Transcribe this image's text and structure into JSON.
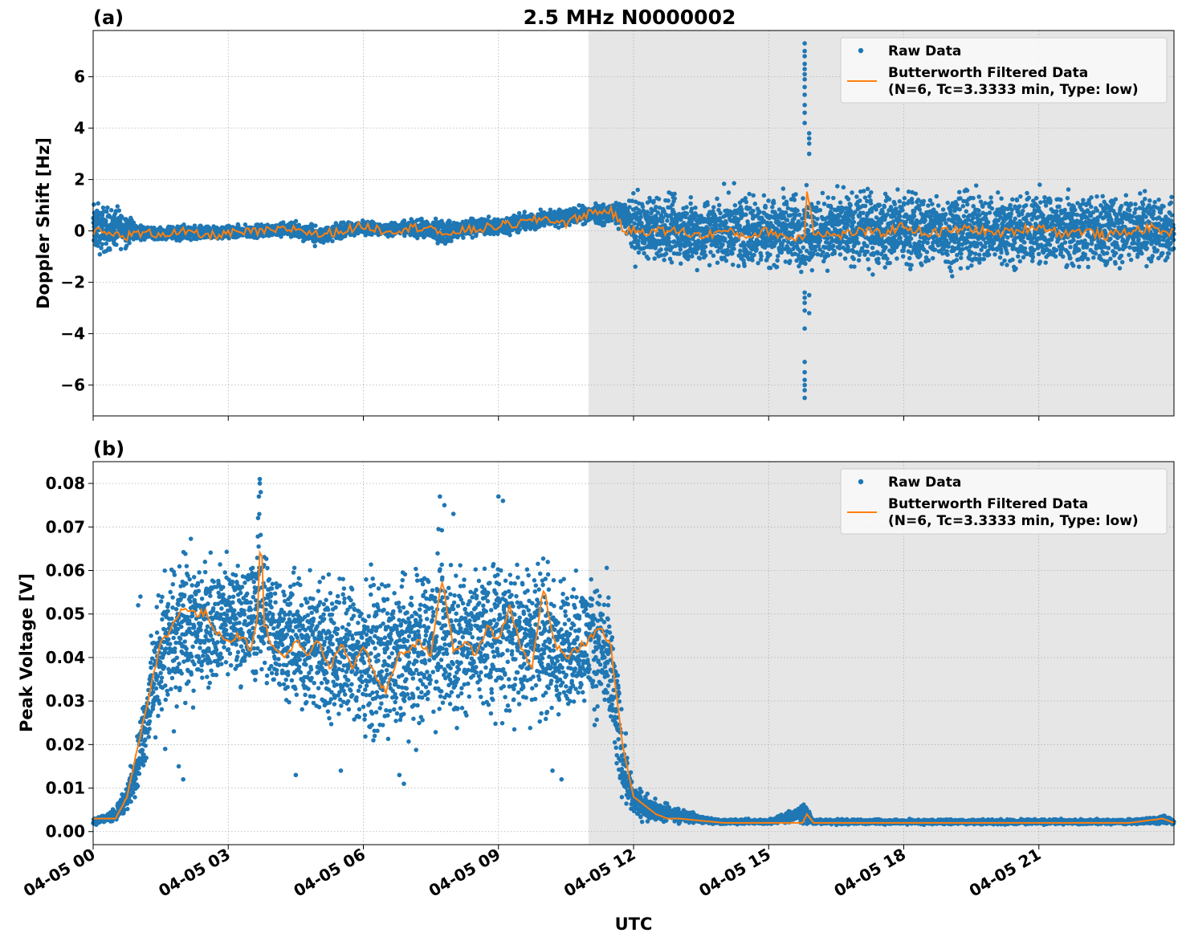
{
  "figure": {
    "title": "2.5 MHz N0000002",
    "xlabel": "UTC",
    "x_tick_labels": [
      "04-05 00",
      "04-05 03",
      "04-05 06",
      "04-05 09",
      "04-05 12",
      "04-05 15",
      "04-05 18",
      "04-05 21"
    ],
    "shaded_region_start_hour": 11.0,
    "colors": {
      "raw": "#1f77b4",
      "filtered": "#ff7f0e",
      "shade": "#e6e6e6",
      "grid": "#b0b0b0"
    }
  },
  "chart_data": [
    {
      "panel": "(a)",
      "type": "scatter",
      "ylabel": "Doppler Shift [Hz]",
      "xlim_hours": [
        0,
        24
      ],
      "ylim": [
        -7.2,
        7.8
      ],
      "y_ticks": [
        -6,
        -4,
        -2,
        0,
        2,
        4,
        6
      ],
      "y_tick_labels": [
        "−6",
        "−4",
        "−2",
        "0",
        "2",
        "4",
        "6"
      ],
      "legend": {
        "placement": "top-right",
        "entries": [
          "Raw Data",
          "Butterworth Filtered Data",
          "(N=6, Tc=3.3333 min, Type: low)"
        ]
      },
      "series": [
        {
          "name": "Raw Data",
          "kind": "scatter-envelope",
          "x_hours": [
            0,
            0.25,
            0.5,
            0.75,
            1.0,
            1.5,
            2.0,
            2.5,
            3.0,
            3.5,
            4.0,
            4.5,
            5.0,
            5.5,
            6.0,
            6.5,
            7.0,
            7.5,
            7.8,
            8.0,
            8.5,
            9.0,
            9.5,
            10.0,
            10.5,
            11.0,
            11.5,
            11.8,
            12.0,
            12.5,
            13.0,
            14.0,
            15.0,
            15.8,
            16.0,
            17.0,
            18.0,
            19.0,
            20.0,
            21.0,
            22.0,
            23.0,
            24.0
          ],
          "upper": [
            1.5,
            1.3,
            1.2,
            1.0,
            0.3,
            0.2,
            0.3,
            0.3,
            0.3,
            0.3,
            0.4,
            0.5,
            0.3,
            0.4,
            0.5,
            0.4,
            0.5,
            0.6,
            0.6,
            0.5,
            0.7,
            0.6,
            0.8,
            0.9,
            1.0,
            1.1,
            1.2,
            1.3,
            1.8,
            1.8,
            1.8,
            1.9,
            2.0,
            2.0,
            1.9,
            2.0,
            2.0,
            2.0,
            2.0,
            2.0,
            1.9,
            1.9,
            1.8
          ],
          "lower": [
            -1.3,
            -1.2,
            -1.0,
            -0.8,
            -0.4,
            -0.4,
            -0.5,
            -0.5,
            -0.4,
            -0.4,
            -0.3,
            -0.4,
            -0.7,
            -0.4,
            -0.2,
            -0.3,
            -0.3,
            -0.5,
            -0.7,
            -0.5,
            -0.3,
            -0.3,
            -0.2,
            0.0,
            0.1,
            0.2,
            0.1,
            0.0,
            -1.5,
            -1.7,
            -1.8,
            -1.9,
            -1.9,
            -2.0,
            -1.9,
            -1.9,
            -1.9,
            -1.9,
            -1.9,
            -1.9,
            -1.8,
            -1.8,
            -1.7
          ]
        },
        {
          "name": "Butterworth Filtered Data",
          "kind": "line",
          "x_hours": [
            0,
            0.25,
            0.5,
            0.75,
            1.0,
            1.5,
            2.0,
            2.5,
            3.0,
            3.5,
            4.0,
            4.5,
            5.0,
            5.5,
            6.0,
            6.5,
            7.0,
            7.5,
            7.8,
            8.0,
            8.5,
            9.0,
            9.5,
            10.0,
            10.5,
            11.0,
            11.5,
            11.8,
            12.0,
            12.5,
            13.0,
            13.5,
            14.0,
            14.5,
            15.0,
            15.5,
            15.8,
            15.85,
            16.0,
            16.5,
            17.0,
            17.5,
            18.0,
            18.5,
            19.0,
            19.5,
            20.0,
            20.5,
            21.0,
            21.5,
            22.0,
            22.5,
            23.0,
            23.5,
            24.0
          ],
          "values": [
            0.0,
            -0.1,
            -0.15,
            -0.2,
            -0.1,
            -0.1,
            -0.05,
            -0.2,
            -0.1,
            -0.05,
            0.0,
            0.1,
            -0.15,
            0.0,
            0.2,
            0.0,
            0.1,
            0.2,
            -0.3,
            0.0,
            0.05,
            0.2,
            0.3,
            0.5,
            0.3,
            0.7,
            0.8,
            0.0,
            0.0,
            0.0,
            0.0,
            -0.2,
            0.0,
            -0.2,
            0.0,
            -0.3,
            -0.2,
            1.7,
            0.0,
            -0.2,
            0.0,
            -0.1,
            0.2,
            -0.1,
            0.0,
            0.1,
            -0.1,
            0.0,
            0.2,
            -0.1,
            0.0,
            -0.2,
            0.0,
            0.1,
            -0.1
          ]
        },
        {
          "name": "Raw Data outliers",
          "kind": "points",
          "x_hours": [
            15.8,
            15.8,
            15.8,
            15.8,
            15.8,
            15.8,
            15.8,
            15.8,
            15.8,
            15.8,
            15.8,
            15.8,
            15.8,
            15.8,
            15.8,
            15.8,
            15.8,
            15.8,
            15.8,
            15.8,
            15.8,
            15.8,
            15.8,
            15.9,
            15.9,
            15.9,
            15.9,
            15.9,
            15.9
          ],
          "values": [
            7.3,
            7.0,
            6.8,
            6.5,
            6.3,
            6.1,
            5.9,
            5.6,
            5.3,
            4.9,
            4.6,
            4.2,
            -3.8,
            -5.1,
            -5.5,
            -5.8,
            -6.0,
            -6.2,
            -6.5,
            -3.1,
            -2.8,
            -2.6,
            -2.4,
            3.8,
            3.4,
            3.0,
            3.6,
            -2.5,
            -3.2
          ]
        }
      ]
    },
    {
      "panel": "(b)",
      "type": "scatter",
      "ylabel": "Peak Voltage [V]",
      "xlim_hours": [
        0,
        24
      ],
      "ylim": [
        -0.003,
        0.085
      ],
      "y_ticks": [
        0.0,
        0.01,
        0.02,
        0.03,
        0.04,
        0.05,
        0.06,
        0.07,
        0.08
      ],
      "y_tick_labels": [
        "0.00",
        "0.01",
        "0.02",
        "0.03",
        "0.04",
        "0.05",
        "0.06",
        "0.07",
        "0.08"
      ],
      "legend": {
        "placement": "top-right",
        "entries": [
          "Raw Data",
          "Butterworth Filtered Data",
          "(N=6, Tc=3.3333 min, Type: low)"
        ]
      },
      "series": [
        {
          "name": "Raw Data",
          "kind": "scatter-envelope",
          "x_hours": [
            0,
            0.25,
            0.5,
            0.75,
            1.0,
            1.25,
            1.5,
            2.0,
            2.5,
            3.0,
            3.5,
            3.7,
            4.0,
            4.5,
            5.0,
            5.5,
            6.0,
            6.5,
            7.0,
            7.5,
            7.7,
            8.0,
            8.5,
            9.0,
            9.5,
            10.0,
            10.3,
            10.5,
            11.0,
            11.3,
            11.5,
            11.75,
            12.0,
            12.5,
            13.0,
            13.5,
            14.0,
            15.0,
            15.8,
            16.0,
            17.0,
            18.0,
            19.0,
            20.0,
            21.0,
            22.0,
            23.0,
            23.75,
            24.0
          ],
          "upper": [
            0.004,
            0.004,
            0.006,
            0.012,
            0.025,
            0.045,
            0.063,
            0.07,
            0.068,
            0.066,
            0.068,
            0.079,
            0.066,
            0.064,
            0.065,
            0.066,
            0.065,
            0.062,
            0.066,
            0.07,
            0.074,
            0.066,
            0.068,
            0.07,
            0.068,
            0.07,
            0.064,
            0.063,
            0.063,
            0.064,
            0.06,
            0.03,
            0.012,
            0.008,
            0.006,
            0.004,
            0.003,
            0.003,
            0.007,
            0.003,
            0.003,
            0.003,
            0.003,
            0.003,
            0.003,
            0.003,
            0.003,
            0.004,
            0.003
          ],
          "lower": [
            0.001,
            0.002,
            0.002,
            0.004,
            0.008,
            0.015,
            0.02,
            0.022,
            0.028,
            0.032,
            0.028,
            0.03,
            0.027,
            0.024,
            0.02,
            0.018,
            0.015,
            0.016,
            0.014,
            0.02,
            0.018,
            0.02,
            0.022,
            0.02,
            0.02,
            0.02,
            0.016,
            0.022,
            0.025,
            0.02,
            0.01,
            0.004,
            0.002,
            0.0015,
            0.0015,
            0.0015,
            0.0015,
            0.0015,
            0.0015,
            0.0015,
            0.0015,
            0.0015,
            0.0015,
            0.0015,
            0.0015,
            0.0015,
            0.0015,
            0.0015,
            0.0015
          ]
        },
        {
          "name": "Butterworth Filtered Data",
          "kind": "line",
          "x_hours": [
            0,
            0.25,
            0.5,
            0.75,
            1.0,
            1.25,
            1.5,
            1.75,
            2.0,
            2.25,
            2.5,
            2.75,
            3.0,
            3.25,
            3.5,
            3.65,
            3.72,
            3.8,
            4.0,
            4.25,
            4.5,
            4.75,
            5.0,
            5.25,
            5.5,
            5.75,
            6.0,
            6.25,
            6.5,
            6.75,
            7.0,
            7.25,
            7.5,
            7.75,
            8.0,
            8.25,
            8.5,
            8.75,
            9.0,
            9.25,
            9.5,
            9.75,
            10.0,
            10.25,
            10.5,
            10.75,
            11.0,
            11.25,
            11.5,
            11.75,
            12.0,
            12.25,
            12.5,
            12.75,
            13.0,
            13.5,
            14.0,
            15.0,
            15.75,
            15.85,
            16.0,
            17.0,
            18.0,
            19.0,
            20.0,
            21.0,
            22.0,
            23.0,
            23.75,
            24.0
          ],
          "values": [
            0.003,
            0.003,
            0.003,
            0.008,
            0.02,
            0.032,
            0.043,
            0.047,
            0.052,
            0.05,
            0.05,
            0.046,
            0.044,
            0.045,
            0.042,
            0.05,
            0.071,
            0.048,
            0.042,
            0.04,
            0.044,
            0.04,
            0.044,
            0.037,
            0.043,
            0.038,
            0.043,
            0.036,
            0.032,
            0.04,
            0.042,
            0.044,
            0.04,
            0.058,
            0.042,
            0.043,
            0.041,
            0.047,
            0.044,
            0.052,
            0.042,
            0.038,
            0.056,
            0.043,
            0.04,
            0.042,
            0.044,
            0.047,
            0.042,
            0.02,
            0.008,
            0.006,
            0.004,
            0.003,
            0.003,
            0.0025,
            0.002,
            0.002,
            0.002,
            0.004,
            0.002,
            0.002,
            0.002,
            0.002,
            0.002,
            0.002,
            0.002,
            0.002,
            0.003,
            0.002
          ]
        },
        {
          "name": "Raw Data outliers",
          "kind": "points",
          "x_hours": [
            3.7,
            3.7,
            3.72,
            3.68,
            7.7,
            7.8,
            8.0,
            9.0,
            9.1,
            1.05,
            1.0,
            1.6,
            1.9,
            2.0,
            4.5,
            5.5,
            6.8,
            6.9,
            10.2,
            10.4
          ],
          "values": [
            0.081,
            0.08,
            0.078,
            0.077,
            0.077,
            0.075,
            0.073,
            0.077,
            0.076,
            0.054,
            0.052,
            0.019,
            0.015,
            0.012,
            0.013,
            0.014,
            0.013,
            0.011,
            0.014,
            0.012
          ]
        }
      ]
    }
  ]
}
